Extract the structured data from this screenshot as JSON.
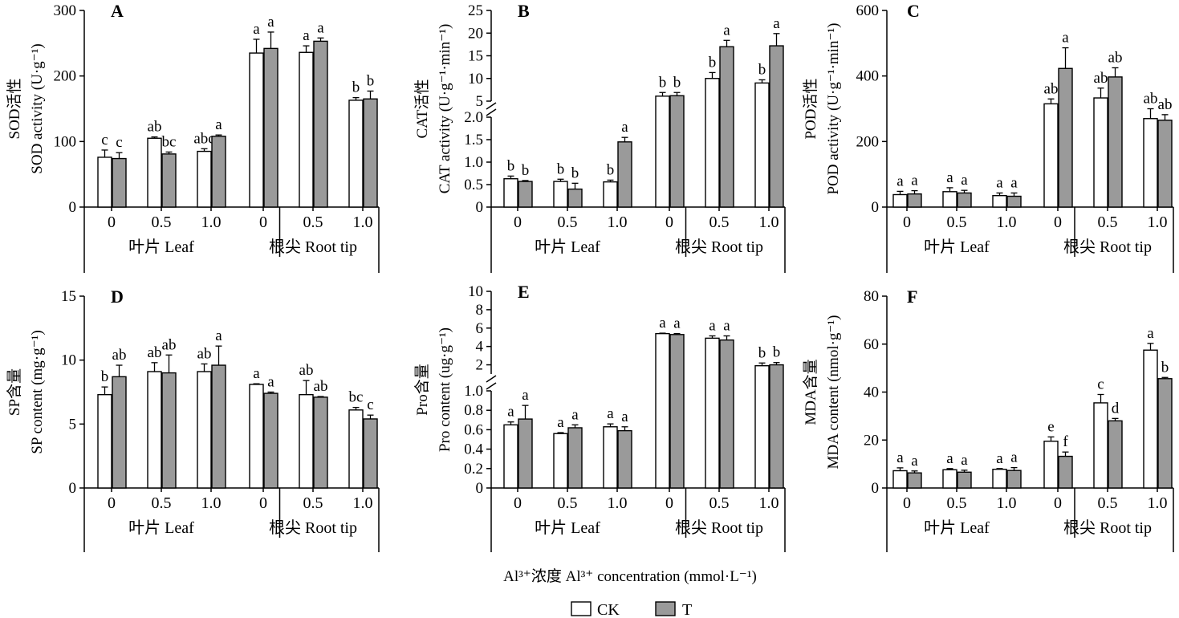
{
  "figure": {
    "x_title_cn": "Al³⁺浓度",
    "x_title_en": "Al³⁺ concentration (mmol·L⁻¹)",
    "legend": [
      {
        "key": "CK",
        "label": "CK",
        "color": "#ffffff"
      },
      {
        "key": "T",
        "label": "T",
        "color": "#9a9a9a"
      }
    ]
  },
  "chart_data": [
    {
      "type": "bar",
      "panel": "A",
      "ylabel_cn": "SOD活性",
      "ylabel_en": "SOD activity (U·g⁻¹)",
      "categories": [
        "0",
        "0.5",
        "1.0",
        "0",
        "0.5",
        "1.0"
      ],
      "groups": [
        {
          "label": "叶片 Leaf",
          "span": [
            0,
            2
          ]
        },
        {
          "label": "根尖  Root tip",
          "span": [
            3,
            5
          ]
        }
      ],
      "ylim": [
        0,
        300
      ],
      "yticks": [
        0,
        100,
        200,
        300
      ],
      "series": [
        {
          "name": "CK",
          "values": [
            76,
            105,
            85,
            235,
            236,
            163
          ],
          "errors": [
            11,
            2,
            4,
            21,
            10,
            4
          ],
          "letters": [
            "c",
            "ab",
            "abc",
            "a",
            "a",
            "b"
          ]
        },
        {
          "name": "T",
          "values": [
            74,
            81,
            108,
            242,
            253,
            165
          ],
          "errors": [
            9,
            3,
            2,
            25,
            5,
            12
          ],
          "letters": [
            "c",
            "bc",
            "a",
            "a",
            "a",
            "b"
          ]
        }
      ]
    },
    {
      "type": "bar",
      "panel": "B",
      "ylabel_cn": "CAT活性",
      "ylabel_en": "CAT activity (U·g⁻¹·min⁻¹)",
      "categories": [
        "0",
        "0.5",
        "1.0",
        "0",
        "0.5",
        "1.0"
      ],
      "groups": [
        {
          "label": "叶片 Leaf",
          "span": [
            0,
            2
          ]
        },
        {
          "label": "根尖  Root tip",
          "span": [
            3,
            5
          ]
        }
      ],
      "broken_axis": true,
      "ylim_lower": [
        0,
        2.0
      ],
      "yticks_lower": [
        "0",
        "0.5",
        "1.0",
        "1.5",
        "2.0"
      ],
      "ylim_upper": [
        5,
        25
      ],
      "yticks_upper": [
        "5",
        "10",
        "15",
        "20",
        "25"
      ],
      "series": [
        {
          "name": "CK",
          "values": [
            0.63,
            0.57,
            0.56,
            6.1,
            10.0,
            9.0
          ],
          "errors": [
            0.06,
            0.05,
            0.04,
            0.8,
            1.3,
            0.7
          ],
          "letters": [
            "b",
            "b",
            "b",
            "b",
            "b",
            "b"
          ]
        },
        {
          "name": "T",
          "values": [
            0.57,
            0.4,
            1.45,
            6.2,
            17.0,
            17.2
          ],
          "errors": [
            0.02,
            0.13,
            0.1,
            0.7,
            1.4,
            2.7
          ],
          "letters": [
            "b",
            "b",
            "a",
            "b",
            "a",
            "a"
          ]
        }
      ]
    },
    {
      "type": "bar",
      "panel": "C",
      "ylabel_cn": "POD活性",
      "ylabel_en": "POD activity (U·g⁻¹·min⁻¹)",
      "categories": [
        "0",
        "0.5",
        "1.0",
        "0",
        "0.5",
        "1.0"
      ],
      "groups": [
        {
          "label": "叶片 Leaf",
          "span": [
            0,
            2
          ]
        },
        {
          "label": "根尖  Root tip",
          "span": [
            3,
            5
          ]
        }
      ],
      "ylim": [
        0,
        600
      ],
      "yticks": [
        0,
        200,
        400,
        600
      ],
      "series": [
        {
          "name": "CK",
          "values": [
            38,
            47,
            35,
            315,
            333,
            270
          ],
          "errors": [
            10,
            12,
            8,
            15,
            30,
            30
          ],
          "letters": [
            "a",
            "a",
            "a",
            "ab",
            "ab",
            "ab"
          ]
        },
        {
          "name": "T",
          "values": [
            40,
            43,
            33,
            423,
            397,
            265
          ],
          "errors": [
            10,
            8,
            10,
            63,
            28,
            17
          ],
          "letters": [
            "a",
            "a",
            "a",
            "a",
            "ab",
            "ab"
          ]
        }
      ]
    },
    {
      "type": "bar",
      "panel": "D",
      "ylabel_cn": "SP含量",
      "ylabel_en": "SP content (mg·g⁻¹)",
      "categories": [
        "0",
        "0.5",
        "1.0",
        "0",
        "0.5",
        "1.0"
      ],
      "groups": [
        {
          "label": "叶片 Leaf",
          "span": [
            0,
            2
          ]
        },
        {
          "label": "根尖  Root tip",
          "span": [
            3,
            5
          ]
        }
      ],
      "ylim": [
        0,
        15
      ],
      "yticks": [
        0,
        5,
        10,
        15
      ],
      "series": [
        {
          "name": "CK",
          "values": [
            7.3,
            9.1,
            9.1,
            8.1,
            7.3,
            6.1
          ],
          "errors": [
            0.6,
            0.7,
            0.6,
            0.05,
            1.1,
            0.2
          ],
          "letters": [
            "b",
            "ab",
            "ab",
            "a",
            "ab",
            "bc"
          ]
        },
        {
          "name": "T",
          "values": [
            8.7,
            9.0,
            9.6,
            7.4,
            7.1,
            5.4
          ],
          "errors": [
            0.9,
            1.4,
            1.5,
            0.1,
            0.05,
            0.3
          ],
          "letters": [
            "ab",
            "ab",
            "a",
            "a",
            "ab",
            "c"
          ]
        }
      ]
    },
    {
      "type": "bar",
      "panel": "E",
      "ylabel_cn": "Pro含量",
      "ylabel_en": "Pro content (ug·g⁻¹)",
      "categories": [
        "0",
        "0.5",
        "1.0",
        "0",
        "0.5",
        "1.0"
      ],
      "groups": [
        {
          "label": "叶片 Leaf",
          "span": [
            0,
            2
          ]
        },
        {
          "label": "根尖  Root tip",
          "span": [
            3,
            5
          ]
        }
      ],
      "broken_axis": true,
      "ylim_lower": [
        0,
        1.0
      ],
      "yticks_lower": [
        "0",
        "0.2",
        "0.4",
        "0.6",
        "0.8",
        "1.0"
      ],
      "ylim_upper": [
        1,
        10
      ],
      "yticks_upper": [
        "2",
        "4",
        "6",
        "8",
        "10"
      ],
      "series": [
        {
          "name": "CK",
          "values": [
            0.65,
            0.56,
            0.63,
            5.4,
            4.9,
            1.9
          ],
          "errors": [
            0.03,
            0.01,
            0.03,
            0.05,
            0.25,
            0.3
          ],
          "letters": [
            "a",
            "a",
            "a",
            "a",
            "a",
            "b"
          ]
        },
        {
          "name": "T",
          "values": [
            0.71,
            0.62,
            0.59,
            5.3,
            4.7,
            2.0
          ],
          "errors": [
            0.14,
            0.03,
            0.04,
            0.1,
            0.45,
            0.25
          ],
          "letters": [
            "a",
            "a",
            "a",
            "a",
            "a",
            "b"
          ]
        }
      ]
    },
    {
      "type": "bar",
      "panel": "F",
      "ylabel_cn": "MDA含量",
      "ylabel_en": "MDA content (nmol·g⁻¹)",
      "categories": [
        "0",
        "0.5",
        "1.0",
        "0",
        "0.5",
        "1.0"
      ],
      "groups": [
        {
          "label": "叶片 Leaf",
          "span": [
            0,
            2
          ]
        },
        {
          "label": "根尖  Root tip",
          "span": [
            3,
            5
          ]
        }
      ],
      "ylim": [
        0,
        80
      ],
      "yticks": [
        0,
        20,
        40,
        60,
        80
      ],
      "series": [
        {
          "name": "CK",
          "values": [
            7.2,
            7.6,
            7.8,
            19.5,
            35.5,
            57.5
          ],
          "errors": [
            1.2,
            0.5,
            0.3,
            1.8,
            3.5,
            2.8
          ],
          "letters": [
            "a",
            "a",
            "a",
            "e",
            "c",
            "a"
          ]
        },
        {
          "name": "T",
          "values": [
            6.3,
            6.6,
            7.3,
            13.2,
            28.0,
            45.6
          ],
          "errors": [
            0.8,
            0.8,
            1.2,
            1.8,
            1.0,
            0.5
          ],
          "letters": [
            "a",
            "a",
            "a",
            "f",
            "d",
            "b"
          ]
        }
      ]
    }
  ]
}
